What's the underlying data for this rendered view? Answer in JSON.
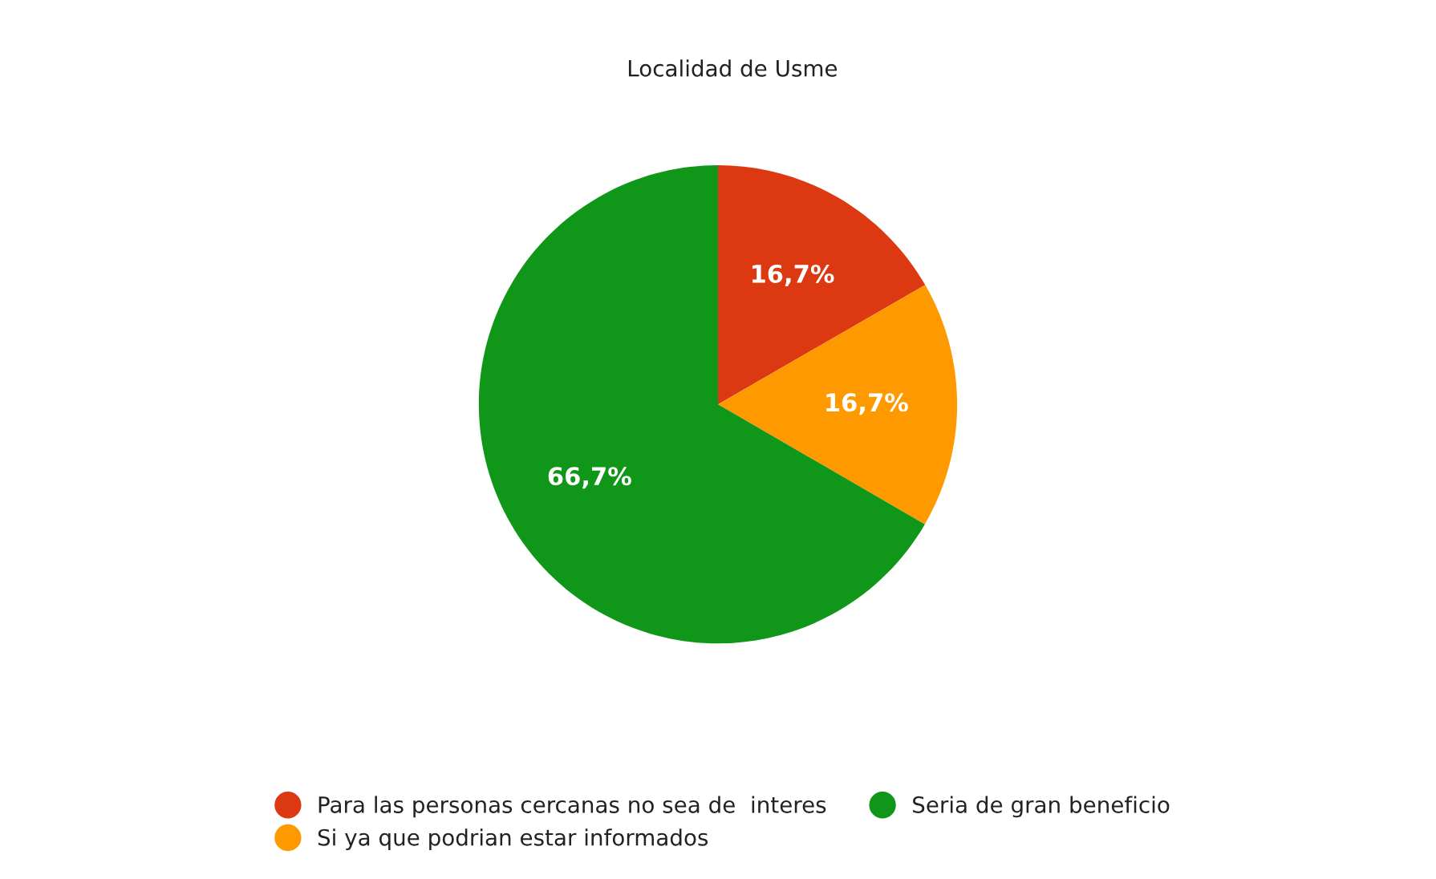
{
  "chart_data": {
    "type": "pie",
    "title": "Localidad de Usme",
    "categories": [
      "Para las personas cercanas no sea de  interes",
      "Si ya que podrian estar informados",
      "Seria de gran beneficio"
    ],
    "values": [
      16.7,
      16.7,
      66.7
    ],
    "colors": [
      "#dc3912",
      "#ff9900",
      "#109618"
    ],
    "value_labels": [
      "16,7%",
      "16,7%",
      "66,7%"
    ],
    "legend": "bottom"
  }
}
